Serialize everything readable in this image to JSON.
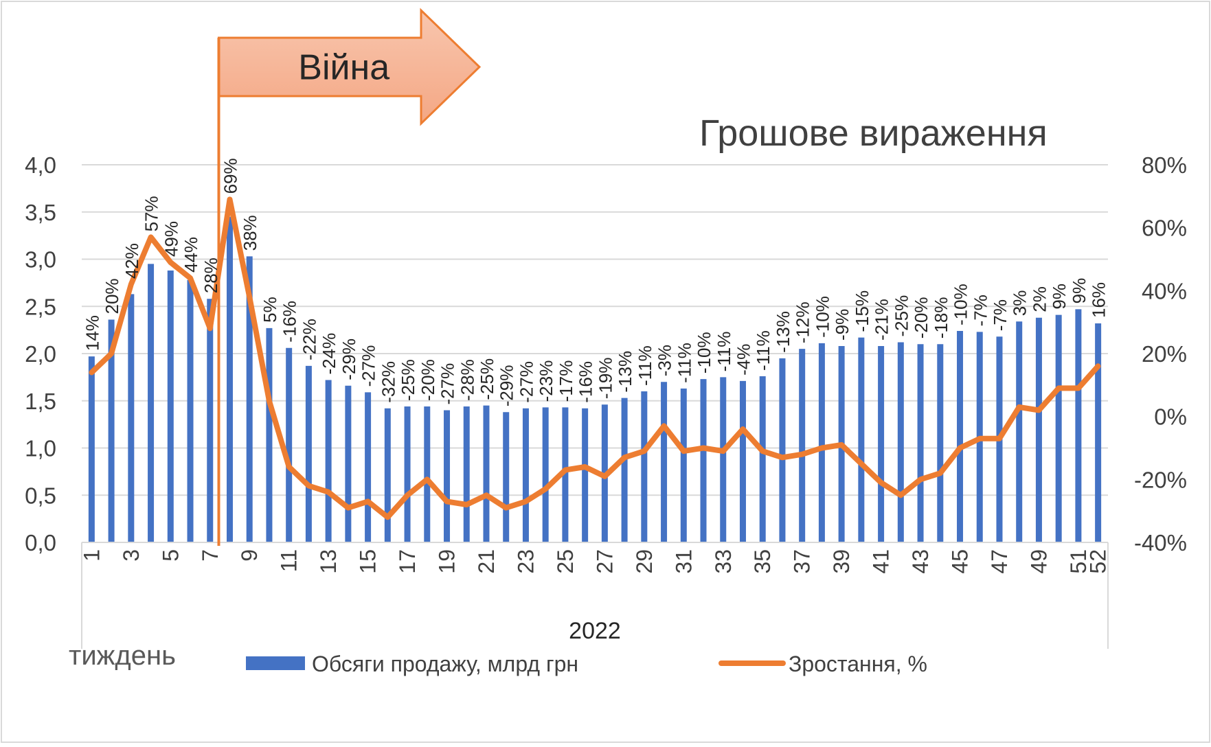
{
  "chart_data": {
    "type": "bar",
    "title": "Грошове вираження",
    "annotation": "Війна",
    "war_marker_week": 8,
    "x_group_label": "2022",
    "x_axis_caption": "тиждень",
    "categories": [
      1,
      2,
      3,
      4,
      5,
      6,
      7,
      8,
      9,
      10,
      11,
      12,
      13,
      14,
      15,
      16,
      17,
      18,
      19,
      20,
      21,
      22,
      23,
      24,
      25,
      26,
      27,
      28,
      29,
      30,
      31,
      32,
      33,
      34,
      35,
      36,
      37,
      38,
      39,
      40,
      41,
      42,
      43,
      44,
      45,
      46,
      47,
      48,
      49,
      50,
      51,
      52
    ],
    "x_tick_labels": [
      "1",
      "3",
      "5",
      "7",
      "9",
      "11",
      "13",
      "15",
      "17",
      "19",
      "21",
      "23",
      "25",
      "27",
      "29",
      "31",
      "33",
      "35",
      "37",
      "39",
      "41",
      "43",
      "45",
      "47",
      "49",
      "51",
      "52"
    ],
    "y_left": {
      "ylim": [
        0,
        4
      ],
      "ticks": [
        "0,0",
        "0,5",
        "1,0",
        "1,5",
        "2,0",
        "2,5",
        "3,0",
        "3,5",
        "4,0"
      ]
    },
    "y_right": {
      "ylim": [
        -40,
        80
      ],
      "ticks": [
        "-40%",
        "-20%",
        "0%",
        "20%",
        "40%",
        "60%",
        "80%"
      ]
    },
    "grid": true,
    "legend_position": "bottom",
    "series": [
      {
        "name": "Обсяги продажу, млрд грн",
        "type": "bar",
        "axis": "left",
        "color": "#4472C4",
        "values": [
          1.97,
          2.36,
          2.63,
          2.95,
          2.88,
          2.78,
          2.58,
          3.45,
          3.03,
          2.27,
          2.06,
          1.87,
          1.72,
          1.66,
          1.59,
          1.42,
          1.44,
          1.44,
          1.4,
          1.44,
          1.45,
          1.38,
          1.42,
          1.43,
          1.43,
          1.42,
          1.46,
          1.53,
          1.6,
          1.7,
          1.63,
          1.73,
          1.75,
          1.71,
          1.76,
          1.95,
          2.05,
          2.11,
          2.08,
          2.17,
          2.08,
          2.12,
          2.1,
          2.1,
          2.24,
          2.23,
          2.18,
          2.34,
          2.38,
          2.41,
          2.47,
          2.32
        ]
      },
      {
        "name": "Зростання, %",
        "type": "line",
        "axis": "right",
        "color": "#ED7D31",
        "values": [
          14,
          20,
          42,
          57,
          49,
          44,
          28,
          69,
          38,
          5,
          -16,
          -22,
          -24,
          -29,
          -27,
          -32,
          -25,
          -20,
          -27,
          -28,
          -25,
          -29,
          -27,
          -23,
          -17,
          -16,
          -19,
          -13,
          -11,
          -3,
          -11,
          -10,
          -11,
          -4,
          -11,
          -13,
          -12,
          -10,
          -9,
          -15,
          -21,
          -25,
          -20,
          -18,
          -10,
          -7,
          -7,
          3,
          2,
          9,
          9,
          16
        ]
      }
    ]
  }
}
